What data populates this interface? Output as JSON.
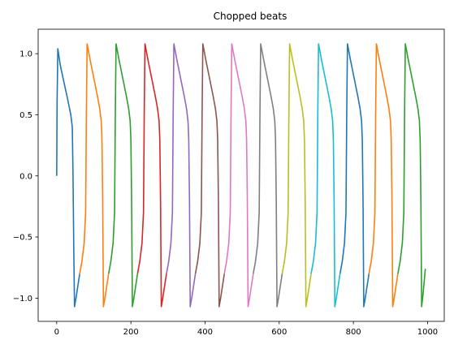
{
  "chart_data": {
    "type": "line",
    "title": "Chopped beats",
    "xlabel": "",
    "ylabel": "",
    "xlim": [
      -50,
      1045
    ],
    "ylim": [
      -1.19,
      1.2
    ],
    "x_ticks": [
      0,
      200,
      400,
      600,
      800,
      1000
    ],
    "x_tick_labels": [
      "0",
      "200",
      "400",
      "600",
      "800",
      "1000"
    ],
    "y_ticks": [
      -1.0,
      -0.5,
      0.0,
      0.5,
      1.0
    ],
    "y_tick_labels": [
      "−1.0",
      "−0.5",
      "0.0",
      "0.5",
      "1.0"
    ],
    "grid": false,
    "legend": "none",
    "beat_profile": {
      "description": "",
      "peak": 1.08,
      "trough": -1.07,
      "shoulder": -0.8
    },
    "series": [
      {
        "color": "#1f77b4",
        "x": [
          0,
          1,
          3,
          10,
          20,
          30,
          38,
          42,
          44,
          46,
          48,
          52,
          58,
          62
        ],
        "y": [
          0.0,
          0.6,
          1.04,
          0.9,
          0.76,
          0.62,
          0.5,
          0.4,
          0.0,
          -0.6,
          -1.07,
          -1.0,
          -0.88,
          -0.8
        ]
      },
      {
        "color": "#ff7f0e",
        "x": [
          62,
          68,
          74,
          78,
          80,
          82,
          90,
          100,
          110,
          116,
          120,
          122,
          124,
          126,
          130,
          136,
          140
        ],
        "y": [
          -0.8,
          -0.7,
          -0.55,
          -0.3,
          0.5,
          1.08,
          0.95,
          0.8,
          0.65,
          0.55,
          0.45,
          0.3,
          -0.2,
          -1.07,
          -1.0,
          -0.88,
          -0.8
        ]
      },
      {
        "color": "#2ca02c",
        "x": [
          140,
          146,
          152,
          156,
          158,
          160,
          168,
          178,
          188,
          194,
          198,
          200,
          202,
          204,
          208,
          214,
          218
        ],
        "y": [
          -0.8,
          -0.7,
          -0.55,
          -0.3,
          0.5,
          1.08,
          0.95,
          0.8,
          0.65,
          0.55,
          0.45,
          0.3,
          -0.2,
          -1.07,
          -1.0,
          -0.88,
          -0.8
        ]
      },
      {
        "color": "#d62728",
        "x": [
          218,
          224,
          230,
          234,
          236,
          238,
          246,
          256,
          266,
          272,
          276,
          278,
          280,
          282,
          286,
          292,
          296
        ],
        "y": [
          -0.8,
          -0.7,
          -0.55,
          -0.3,
          0.5,
          1.08,
          0.95,
          0.8,
          0.65,
          0.55,
          0.45,
          0.3,
          -0.2,
          -1.07,
          -1.0,
          -0.88,
          -0.8
        ]
      },
      {
        "color": "#9467bd",
        "x": [
          296,
          302,
          308,
          312,
          314,
          316,
          324,
          334,
          344,
          350,
          354,
          356,
          358,
          360,
          364,
          370,
          374
        ],
        "y": [
          -0.8,
          -0.7,
          -0.55,
          -0.3,
          0.5,
          1.08,
          0.95,
          0.8,
          0.65,
          0.55,
          0.45,
          0.3,
          -0.2,
          -1.07,
          -1.0,
          -0.88,
          -0.8
        ]
      },
      {
        "color": "#8c564b",
        "x": [
          374,
          380,
          386,
          390,
          392,
          394,
          402,
          412,
          422,
          428,
          432,
          434,
          436,
          438,
          442,
          448,
          452
        ],
        "y": [
          -0.8,
          -0.7,
          -0.55,
          -0.3,
          0.5,
          1.08,
          0.95,
          0.8,
          0.65,
          0.55,
          0.45,
          0.3,
          -0.2,
          -1.07,
          -1.0,
          -0.88,
          -0.8
        ]
      },
      {
        "color": "#e377c2",
        "x": [
          452,
          458,
          464,
          468,
          470,
          472,
          480,
          490,
          500,
          506,
          510,
          512,
          514,
          516,
          520,
          526,
          530
        ],
        "y": [
          -0.8,
          -0.7,
          -0.55,
          -0.3,
          0.5,
          1.08,
          0.95,
          0.8,
          0.65,
          0.55,
          0.45,
          0.3,
          -0.2,
          -1.07,
          -1.0,
          -0.88,
          -0.8
        ]
      },
      {
        "color": "#7f7f7f",
        "x": [
          530,
          536,
          542,
          546,
          548,
          550,
          558,
          568,
          578,
          584,
          588,
          590,
          592,
          594,
          598,
          604,
          608
        ],
        "y": [
          -0.8,
          -0.7,
          -0.55,
          -0.3,
          0.5,
          1.08,
          0.95,
          0.8,
          0.65,
          0.55,
          0.45,
          0.3,
          -0.2,
          -1.07,
          -1.0,
          -0.88,
          -0.8
        ]
      },
      {
        "color": "#bcbd22",
        "x": [
          608,
          614,
          620,
          624,
          626,
          628,
          636,
          646,
          656,
          662,
          666,
          668,
          670,
          672,
          676,
          682,
          686
        ],
        "y": [
          -0.8,
          -0.7,
          -0.55,
          -0.3,
          0.5,
          1.08,
          0.95,
          0.8,
          0.65,
          0.55,
          0.45,
          0.3,
          -0.2,
          -1.07,
          -1.0,
          -0.88,
          -0.8
        ]
      },
      {
        "color": "#17becf",
        "x": [
          686,
          692,
          698,
          702,
          704,
          706,
          714,
          724,
          734,
          740,
          744,
          746,
          748,
          750,
          754,
          760,
          764
        ],
        "y": [
          -0.8,
          -0.7,
          -0.55,
          -0.3,
          0.5,
          1.08,
          0.95,
          0.8,
          0.65,
          0.55,
          0.45,
          0.3,
          -0.2,
          -1.07,
          -1.0,
          -0.88,
          -0.8
        ]
      },
      {
        "color": "#1f77b4",
        "x": [
          764,
          770,
          776,
          780,
          782,
          784,
          792,
          802,
          812,
          818,
          822,
          824,
          826,
          828,
          832,
          838,
          842
        ],
        "y": [
          -0.8,
          -0.7,
          -0.55,
          -0.3,
          0.5,
          1.08,
          0.95,
          0.8,
          0.65,
          0.55,
          0.45,
          0.3,
          -0.2,
          -1.07,
          -1.0,
          -0.88,
          -0.8
        ]
      },
      {
        "color": "#ff7f0e",
        "x": [
          842,
          848,
          854,
          858,
          860,
          862,
          870,
          880,
          890,
          896,
          900,
          902,
          904,
          906,
          910,
          916,
          920
        ],
        "y": [
          -0.8,
          -0.7,
          -0.55,
          -0.3,
          0.5,
          1.08,
          0.95,
          0.8,
          0.65,
          0.55,
          0.45,
          0.3,
          -0.2,
          -1.07,
          -1.0,
          -0.88,
          -0.8
        ]
      },
      {
        "color": "#2ca02c",
        "x": [
          920,
          926,
          932,
          936,
          938,
          940,
          948,
          958,
          968,
          974,
          978,
          980,
          982,
          984,
          988,
          994
        ],
        "y": [
          -0.8,
          -0.7,
          -0.55,
          -0.3,
          0.5,
          1.08,
          0.95,
          0.8,
          0.65,
          0.55,
          0.45,
          0.3,
          -0.2,
          -1.07,
          -0.96,
          -0.76
        ]
      }
    ]
  }
}
